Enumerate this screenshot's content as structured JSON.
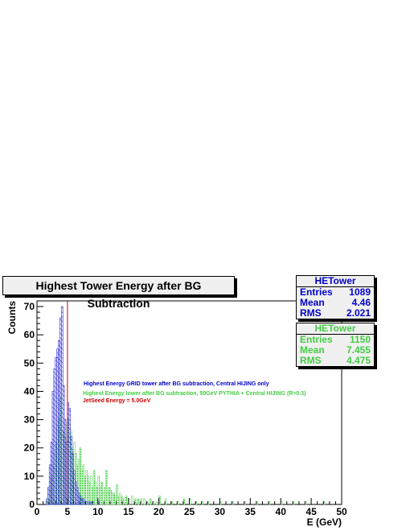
{
  "chart_data": {
    "type": "bar",
    "title": "Highest Tower Energy after BG Subtraction",
    "xlabel": "E (GeV)",
    "ylabel": "Counts",
    "xlim": [
      0,
      50
    ],
    "ylim": [
      0,
      72
    ],
    "xticks": [
      "0",
      "5",
      "10",
      "15",
      "20",
      "25",
      "30",
      "35",
      "40",
      "45",
      "50"
    ],
    "yticks": [
      "0",
      "10",
      "20",
      "30",
      "40",
      "50",
      "60",
      "70"
    ],
    "bin_width": 0.25,
    "series": [
      {
        "name": "HETower",
        "color": "#0000cc",
        "x": [
          1.5,
          1.75,
          2.0,
          2.25,
          2.5,
          2.75,
          3.0,
          3.25,
          3.5,
          3.75,
          4.0,
          4.25,
          4.5,
          4.75,
          5.0,
          5.25,
          5.5,
          5.75,
          6.0,
          6.25,
          6.5,
          6.75,
          7.0,
          7.25,
          7.5,
          7.75,
          8.0,
          8.5,
          9.0,
          10.0
        ],
        "values": [
          2,
          6,
          14,
          22,
          40,
          48,
          52,
          55,
          58,
          66,
          70,
          42,
          30,
          22,
          36,
          34,
          24,
          18,
          12,
          8,
          6,
          4,
          3,
          2,
          2,
          1,
          1,
          1,
          1,
          1
        ]
      },
      {
        "name": "HETower",
        "color": "#44cc44",
        "x": [
          1.5,
          1.75,
          2.0,
          2.25,
          2.5,
          2.75,
          3.0,
          3.25,
          3.5,
          3.75,
          4.0,
          4.25,
          4.5,
          4.75,
          5.0,
          5.25,
          5.5,
          5.75,
          6.0,
          6.25,
          6.5,
          6.75,
          7.0,
          7.25,
          7.5,
          7.75,
          8.0,
          8.25,
          8.5,
          8.75,
          9.0,
          9.25,
          9.5,
          9.75,
          10.0,
          10.25,
          10.5,
          10.75,
          11.0,
          11.25,
          11.5,
          11.75,
          12.0,
          12.25,
          12.5,
          12.75,
          13.0,
          13.25,
          13.5,
          13.75,
          14.0,
          14.5,
          15.0,
          15.5,
          16.0,
          16.5,
          17.0,
          17.5,
          18.0,
          18.5,
          19.0,
          19.5,
          20.0,
          21.0,
          22.0,
          23.0,
          24.0,
          25.0,
          26.0,
          27.0,
          28.0,
          30.0,
          32.0,
          34.0,
          36.0,
          38.0,
          40.0,
          42.0,
          44.0,
          47.0
        ],
        "values": [
          1,
          2,
          5,
          10,
          14,
          18,
          22,
          28,
          30,
          38,
          32,
          26,
          24,
          28,
          30,
          24,
          26,
          20,
          22,
          18,
          14,
          16,
          20,
          12,
          14,
          10,
          12,
          10,
          8,
          10,
          6,
          12,
          8,
          6,
          10,
          6,
          8,
          4,
          6,
          12,
          4,
          6,
          5,
          4,
          4,
          3,
          7,
          3,
          4,
          3,
          2,
          3,
          2,
          3,
          2,
          2,
          2,
          2,
          1,
          2,
          1,
          1,
          3,
          2,
          1,
          1,
          2,
          2,
          1,
          1,
          1,
          1,
          1,
          1,
          1,
          1,
          1,
          1,
          1,
          1
        ]
      }
    ],
    "threshold": {
      "x": 5.0,
      "color": "#cc0000"
    },
    "legend": {
      "position": "center",
      "entries": [
        {
          "text": "Highest Energy GRID tower after BG subtraction, Central HIJING only",
          "color": "#0000cc"
        },
        {
          "text": "Highest Energy tower after BG subtraction, 50GeV PYTHIA + Central HIJING  (R=0.3)",
          "color": "#44cc44"
        },
        {
          "text": "JetSeed Energy = 5.0GeV",
          "color": "#cc0000"
        }
      ]
    }
  },
  "stats": [
    {
      "title": "HETower",
      "color": "#0000cc",
      "rows": [
        {
          "label": "Entries",
          "value": "1089"
        },
        {
          "label": "Mean",
          "value": "4.46"
        },
        {
          "label": "RMS",
          "value": "2.021"
        }
      ]
    },
    {
      "title": "HETower",
      "color": "#44cc44",
      "rows": [
        {
          "label": "Entries",
          "value": "1150"
        },
        {
          "label": "Mean",
          "value": "7.455"
        },
        {
          "label": "RMS",
          "value": "4.475"
        }
      ]
    }
  ]
}
